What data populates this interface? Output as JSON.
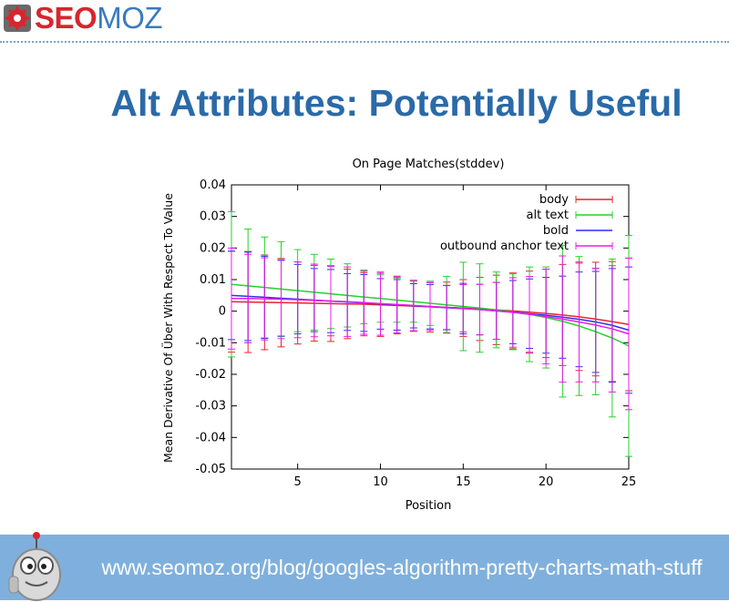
{
  "logo": {
    "seo": "SEO",
    "moz": "MOZ"
  },
  "slide": {
    "title": "Alt Attributes: Potentially Useful"
  },
  "footer": {
    "url": "www.seomoz.org/blog/googles-algorithm-pretty-charts-math-stuff"
  },
  "colors": {
    "title": "#2a6aa8",
    "footer_bg": "#7fb0dd",
    "body": "#e8242a",
    "alt_text": "#22d32a",
    "bold": "#2b2ff0",
    "outbound_anchor_text": "#e81ce8"
  },
  "chart_data": {
    "type": "line",
    "title": "On Page Matches(stddev)",
    "xlabel": "Position",
    "ylabel": "Mean Derivative Of Über With Respect To Value",
    "xlim": [
      1,
      25
    ],
    "ylim": [
      -0.05,
      0.04
    ],
    "x_ticks": [
      5,
      10,
      15,
      20,
      25
    ],
    "y_ticks": [
      0.04,
      0.03,
      0.02,
      0.01,
      0,
      -0.01,
      -0.02,
      -0.03,
      -0.04,
      -0.05
    ],
    "y_tick_labels": [
      "0.04",
      "0.03",
      "0.02",
      "0.01",
      "0",
      "-0.01",
      "-0.02",
      "-0.03",
      "-0.04",
      "-0.05"
    ],
    "legend_position": "top-right",
    "x": [
      1,
      2,
      3,
      4,
      5,
      6,
      7,
      8,
      9,
      10,
      11,
      12,
      13,
      14,
      15,
      16,
      17,
      18,
      19,
      20,
      21,
      22,
      23,
      24,
      25
    ],
    "series": [
      {
        "name": "body",
        "color": "#e8242a",
        "values": [
          0.003,
          0.0029,
          0.0028,
          0.0027,
          0.0026,
          0.0025,
          0.0024,
          0.0023,
          0.0022,
          0.002,
          0.0018,
          0.0016,
          0.0014,
          0.0012,
          0.001,
          0.0007,
          0.0004,
          0.0001,
          -0.0003,
          -0.0007,
          -0.0012,
          -0.0018,
          -0.0025,
          -0.0033,
          -0.0042
        ],
        "error": [
          0.016,
          0.016,
          0.015,
          0.014,
          0.013,
          0.012,
          0.012,
          0.011,
          0.01,
          0.01,
          0.009,
          0.008,
          0.008,
          0.008,
          0.009,
          0.01,
          0.011,
          0.012,
          0.013,
          0.014,
          0.016,
          0.017,
          0.018,
          0.019,
          0.021
        ]
      },
      {
        "name": "alt text",
        "color": "#22d32a",
        "values": [
          0.0085,
          0.008,
          0.0075,
          0.007,
          0.0065,
          0.006,
          0.0055,
          0.005,
          0.0045,
          0.004,
          0.0035,
          0.003,
          0.0025,
          0.002,
          0.0015,
          0.001,
          0.0004,
          -0.0002,
          -0.001,
          -0.002,
          -0.0032,
          -0.0047,
          -0.0065,
          -0.0085,
          -0.011
        ],
        "error": [
          0.023,
          0.018,
          0.016,
          0.015,
          0.013,
          0.012,
          0.011,
          0.01,
          0.0085,
          0.0075,
          0.007,
          0.0065,
          0.007,
          0.009,
          0.014,
          0.014,
          0.012,
          0.012,
          0.015,
          0.016,
          0.024,
          0.022,
          0.02,
          0.025,
          0.035
        ]
      },
      {
        "name": "bold",
        "color": "#2b2ff0",
        "values": [
          0.005,
          0.0047,
          0.0044,
          0.0041,
          0.0038,
          0.0035,
          0.0032,
          0.0029,
          0.0026,
          0.0023,
          0.002,
          0.0017,
          0.0014,
          0.0011,
          0.0008,
          0.0005,
          0.0001,
          -0.0003,
          -0.0008,
          -0.0013,
          -0.0019,
          -0.0026,
          -0.0034,
          -0.0045,
          -0.006
        ],
        "error": [
          0.014,
          0.014,
          0.013,
          0.012,
          0.011,
          0.01,
          0.01,
          0.009,
          0.009,
          0.008,
          0.008,
          0.007,
          0.007,
          0.007,
          0.008,
          0.008,
          0.009,
          0.01,
          0.011,
          0.012,
          0.013,
          0.015,
          0.016,
          0.018,
          0.02
        ]
      },
      {
        "name": "outbound anchor text",
        "color": "#e81ce8",
        "values": [
          0.004,
          0.004,
          0.0039,
          0.0038,
          0.0036,
          0.0034,
          0.0032,
          0.003,
          0.0027,
          0.0024,
          0.0021,
          0.0018,
          0.0015,
          0.0012,
          0.0009,
          0.0005,
          0.0001,
          -0.0004,
          -0.001,
          -0.0017,
          -0.0025,
          -0.0034,
          -0.0044,
          -0.0056,
          -0.0072
        ],
        "error": [
          0.016,
          0.014,
          0.013,
          0.0125,
          0.012,
          0.0115,
          0.011,
          0.011,
          0.01,
          0.01,
          0.009,
          0.008,
          0.0075,
          0.007,
          0.0075,
          0.008,
          0.009,
          0.011,
          0.012,
          0.015,
          0.02,
          0.019,
          0.018,
          0.02,
          0.024
        ]
      }
    ]
  }
}
